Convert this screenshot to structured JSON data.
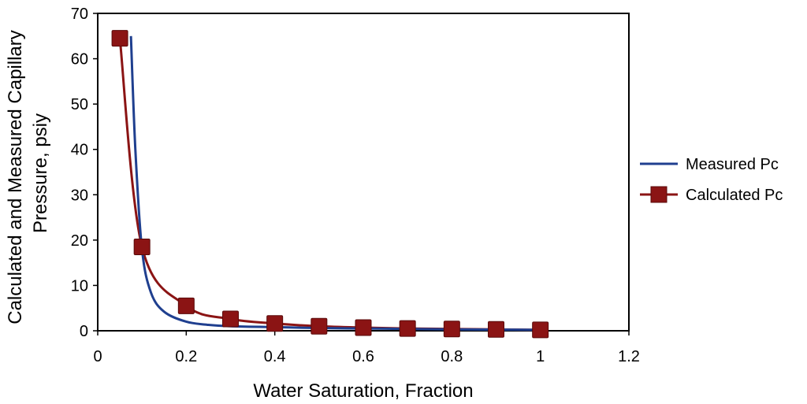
{
  "chart_data": {
    "type": "scatter",
    "title": "",
    "xlabel": "Water Saturation, Fraction",
    "ylabel_lines": [
      "Calculated and Measured Capillary",
      "Pressure, psiy"
    ],
    "xlim": [
      0,
      1.2
    ],
    "ylim": [
      0,
      70
    ],
    "x_ticks": [
      "0",
      "0.2",
      "0.4",
      "0.6",
      "0.8",
      "1",
      "1.2"
    ],
    "y_ticks": [
      "0",
      "10",
      "20",
      "30",
      "40",
      "50",
      "60",
      "70"
    ],
    "grid": false,
    "legend_position": "right",
    "series": [
      {
        "name": "Measured Pc",
        "color": "#1f3f8f",
        "marker": "none",
        "line": "smooth",
        "x": [
          0.075,
          0.085,
          0.1,
          0.12,
          0.15,
          0.2,
          0.25,
          0.3,
          0.4,
          0.5,
          0.6,
          0.7,
          0.8,
          0.9,
          1.0
        ],
        "y": [
          65,
          40,
          18,
          8.5,
          4.2,
          2.0,
          1.3,
          1.0,
          0.8,
          0.6,
          0.5,
          0.4,
          0.3,
          0.25,
          0.2
        ]
      },
      {
        "name": "Calculated Pc",
        "color": "#8b1414",
        "marker": "square",
        "line": "smooth",
        "x": [
          0.05,
          0.1,
          0.2,
          0.3,
          0.4,
          0.5,
          0.6,
          0.7,
          0.8,
          0.9,
          1.0
        ],
        "y": [
          64.5,
          18.5,
          5.5,
          2.6,
          1.6,
          1.0,
          0.7,
          0.5,
          0.4,
          0.3,
          0.2
        ]
      }
    ]
  }
}
